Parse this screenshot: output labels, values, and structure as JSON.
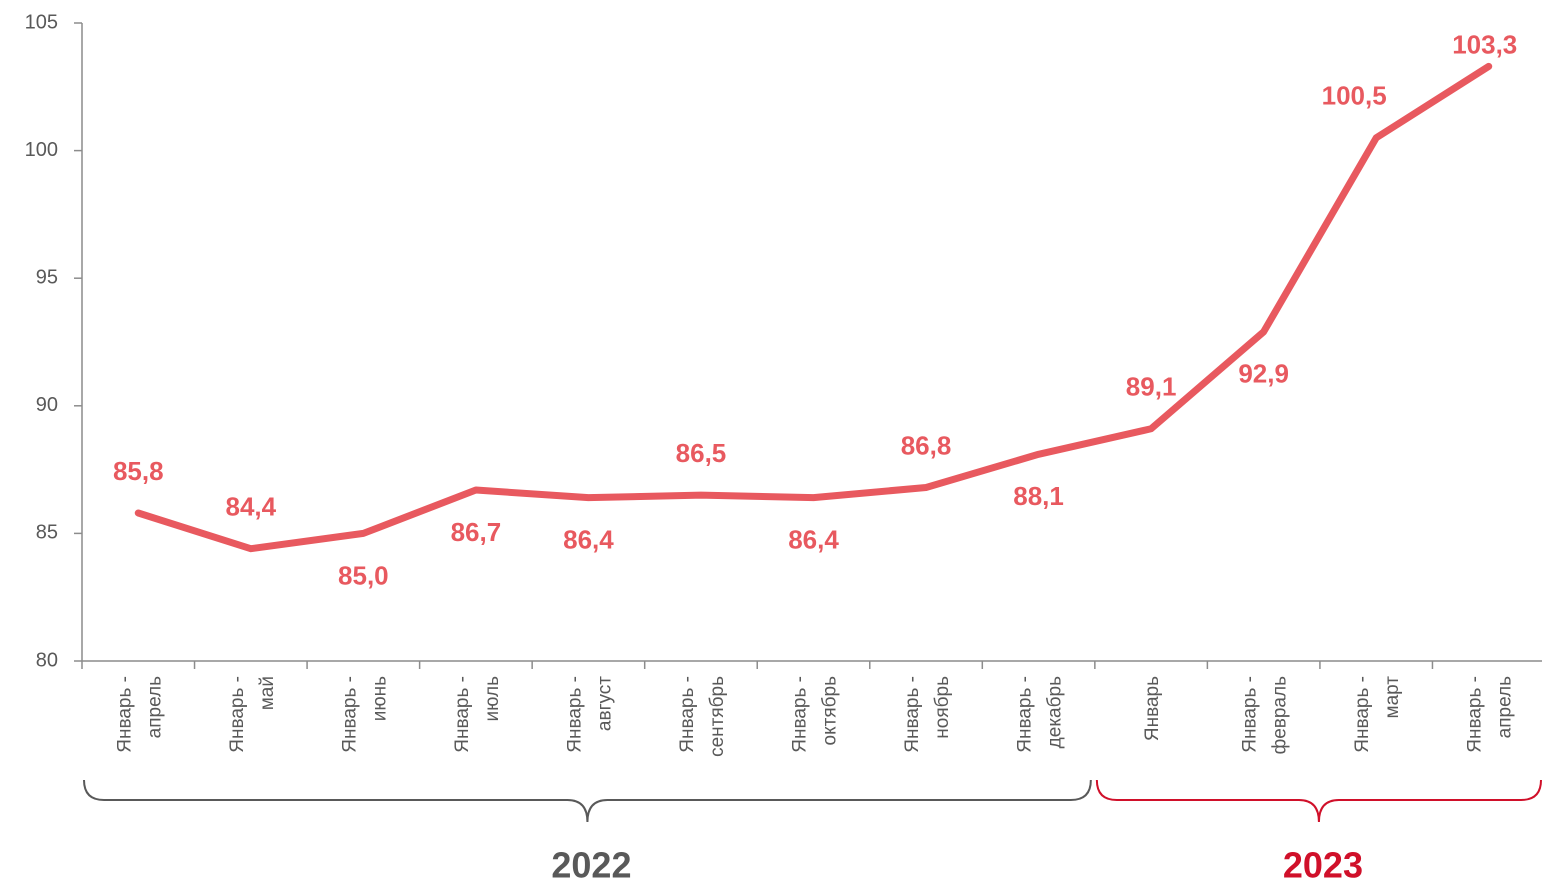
{
  "chart_data": {
    "type": "line",
    "categories": [
      [
        "Январь -",
        "апрель"
      ],
      [
        "Январь -",
        "май"
      ],
      [
        "Январь -",
        "июнь"
      ],
      [
        "Январь -",
        "июль"
      ],
      [
        "Январь -",
        "август"
      ],
      [
        "Январь -",
        "сентябрь"
      ],
      [
        "Январь -",
        "октябрь"
      ],
      [
        "Январь -",
        "ноябрь"
      ],
      [
        "Январь -",
        "декабрь"
      ],
      [
        "Январь"
      ],
      [
        "Январь -",
        "февраль"
      ],
      [
        "Январь -",
        "март"
      ],
      [
        "Январь -",
        "апрель"
      ]
    ],
    "values": [
      85.8,
      84.4,
      85.0,
      86.7,
      86.4,
      86.5,
      86.4,
      86.8,
      88.1,
      89.1,
      92.9,
      100.5,
      103.3
    ],
    "value_labels": [
      "85,8",
      "84,4",
      "85,0",
      "86,7",
      "86,4",
      "86,5",
      "86,4",
      "86,8",
      "88,1",
      "89,1",
      "92,9",
      "100,5",
      "103,3"
    ],
    "color": "#e8595f",
    "ylim": [
      80,
      105
    ],
    "yticks": [
      80,
      85,
      90,
      95,
      100,
      105
    ],
    "groups": [
      {
        "label": "2022",
        "start": 0,
        "end": 8,
        "color": "#595959"
      },
      {
        "label": "2023",
        "start": 9,
        "end": 12,
        "color": "#d0102a"
      }
    ]
  }
}
